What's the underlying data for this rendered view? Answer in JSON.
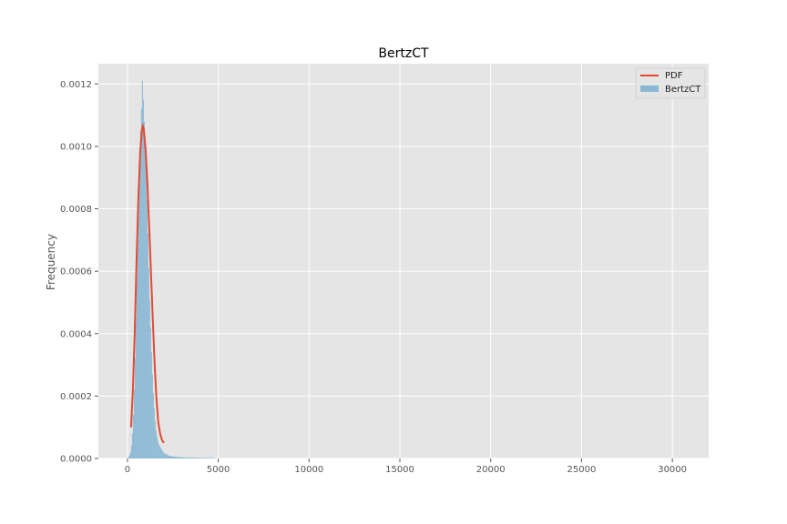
{
  "chart_data": {
    "type": "bar",
    "title": "BertzCT",
    "xlabel": "",
    "ylabel": "Frequency",
    "xlim": [
      -1600,
      32000
    ],
    "ylim": [
      0,
      0.001265
    ],
    "xticks": [
      0,
      5000,
      10000,
      15000,
      20000,
      25000,
      30000
    ],
    "xtick_labels": [
      "0",
      "5000",
      "10000",
      "15000",
      "20000",
      "25000",
      "30000"
    ],
    "yticks": [
      0,
      0.0002,
      0.0004,
      0.0006,
      0.0008,
      0.001,
      0.0012
    ],
    "ytick_labels": [
      "0.0000",
      "0.0002",
      "0.0004",
      "0.0006",
      "0.0008",
      "0.0010",
      "0.0012"
    ],
    "grid": true,
    "legend_position": "top-right",
    "legend": [
      "PDF",
      "BertzCT"
    ],
    "colors": {
      "background": "#E5E5E5",
      "grid": "#FFFFFF",
      "hist": "#8AB8D4",
      "pdf": "#E24A33"
    },
    "histogram": {
      "name": "BertzCT",
      "bin_width": 50,
      "bin_starts": [
        0,
        50,
        100,
        150,
        200,
        250,
        300,
        350,
        400,
        450,
        500,
        550,
        600,
        650,
        700,
        750,
        800,
        850,
        900,
        950,
        1000,
        1050,
        1100,
        1150,
        1200,
        1250,
        1300,
        1350,
        1400,
        1450,
        1500,
        1550,
        1600,
        1650,
        1700,
        1750,
        1800,
        1850,
        1900,
        1950,
        2000,
        2100,
        2200,
        2300,
        2400,
        2500,
        2700,
        2900,
        3100,
        3400,
        3800,
        4300,
        4800
      ],
      "values": [
        2e-06,
        6e-06,
        1.2e-05,
        2e-05,
        4e-05,
        8e-05,
        0.00014,
        0.00022,
        0.00032,
        0.00045,
        0.00058,
        0.0007,
        0.00082,
        0.00092,
        0.00105,
        0.00112,
        0.00121,
        0.00115,
        0.00108,
        0.00101,
        0.00092,
        0.00083,
        0.00072,
        0.00061,
        0.00051,
        0.00042,
        0.00034,
        0.00027,
        0.00021,
        0.00016,
        0.00012,
        9e-05,
        7e-05,
        5.5e-05,
        4.5e-05,
        4e-05,
        3.5e-05,
        3e-05,
        2.5e-05,
        2e-05,
        1.6e-05,
        1.3e-05,
        1e-05,
        8e-06,
        7e-06,
        6e-06,
        5e-06,
        4e-06,
        3e-06,
        2.5e-06,
        2e-06,
        1.5e-06,
        1e-06
      ]
    },
    "pdf": {
      "name": "PDF",
      "x": [
        200,
        300,
        400,
        500,
        600,
        700,
        800,
        850,
        900,
        1000,
        1100,
        1200,
        1300,
        1400,
        1500,
        1600,
        1700,
        1800,
        1900,
        2000
      ],
      "y": [
        0.0001,
        0.00022,
        0.0004,
        0.00063,
        0.00083,
        0.00098,
        0.001055,
        0.001065,
        0.001055,
        0.00099,
        0.00088,
        0.00074,
        0.00059,
        0.00044,
        0.0003,
        0.00019,
        0.000115,
        8e-05,
        6e-05,
        5e-05
      ]
    }
  }
}
